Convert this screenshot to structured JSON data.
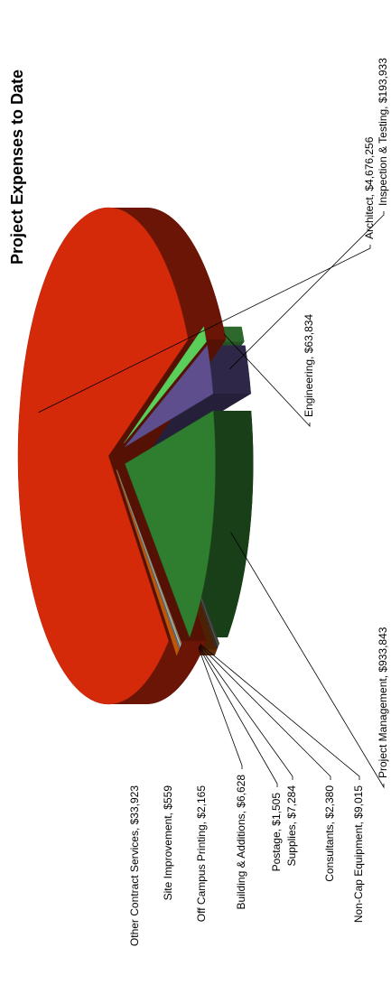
{
  "chart_data": {
    "type": "pie3d",
    "title": "Project Expenses to Date",
    "categories": [
      "Architect, $4,676,256",
      "Engineering, $63,834",
      "Inspection & Testing, $193,933",
      "Project Management, $933,843",
      "Non-Cap Equipment, $9,015",
      "Consultants, $2,380",
      "Supplies, $7,284",
      "Postage, $1,505",
      "Building & Additions, $6,628",
      "Off Campus Printing, $2,165",
      "Site Improvement, $559",
      "Other Contract Services, $33,923"
    ],
    "values": [
      4676256,
      63834,
      193933,
      933843,
      9015,
      2380,
      7284,
      1505,
      6628,
      2165,
      559,
      33923
    ],
    "colors": [
      "#d42a0a",
      "#5ad05a",
      "#5e4e8e",
      "#2f7d2f",
      "#8a8a8a",
      "#e8a060",
      "#c4d080",
      "#a0b8e0",
      "#3a6ab0",
      "#d06060",
      "#70a070",
      "#c0560a"
    ]
  }
}
